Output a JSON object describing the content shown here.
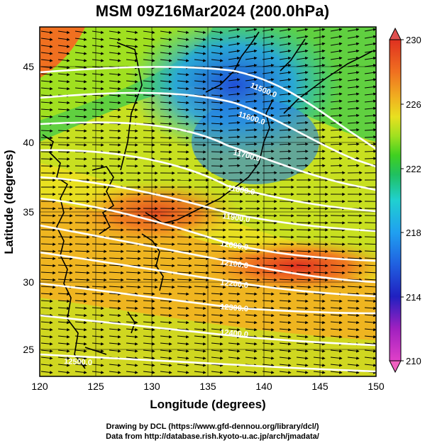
{
  "title": "MSM 09Z16Mar2024 (200.0hPa)",
  "xaxis": {
    "label": "Longitude (degrees)",
    "min": 120,
    "max": 150,
    "ticks": [
      "120",
      "125",
      "130",
      "135",
      "140",
      "145",
      "150"
    ]
  },
  "yaxis": {
    "label": "Latitude  (degrees)",
    "min": 22.5,
    "max": 47.5,
    "ticks": [
      "25",
      "30",
      "35",
      "40",
      "45"
    ]
  },
  "colorbar": {
    "min": 210,
    "max": 230,
    "ticks": [
      "210",
      "214",
      "218",
      "222",
      "226",
      "230"
    ],
    "colors": [
      "#e040c8",
      "#a020c0",
      "#2020c0",
      "#2060e0",
      "#20a0f0",
      "#20d0d0",
      "#20c060",
      "#40d020",
      "#a0e020",
      "#e8e020",
      "#f0b020",
      "#f07020",
      "#e03020",
      "#d03030"
    ]
  },
  "contours": [
    {
      "label": "11500.0"
    },
    {
      "label": "11600.0"
    },
    {
      "label": "11700.0"
    },
    {
      "label": "11800.0"
    },
    {
      "label": "11900.0"
    },
    {
      "label": "12000.0"
    },
    {
      "label": "12100.0"
    },
    {
      "label": "12200.0"
    },
    {
      "label": "12300.0"
    },
    {
      "label": "12400.0"
    },
    {
      "label": "12500.0"
    }
  ],
  "credits": {
    "line1": "Drawing by DCL (https://www.gfd-dennou.org/library/dcl/)",
    "line2": "Data from http://database.rish.kyoto-u.ac.jp/arch/jmadata/"
  }
}
